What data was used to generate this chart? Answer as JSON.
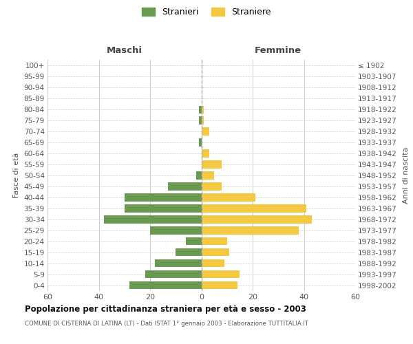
{
  "age_groups": [
    "0-4",
    "5-9",
    "10-14",
    "15-19",
    "20-24",
    "25-29",
    "30-34",
    "35-39",
    "40-44",
    "45-49",
    "50-54",
    "55-59",
    "60-64",
    "65-69",
    "70-74",
    "75-79",
    "80-84",
    "85-89",
    "90-94",
    "95-99",
    "100+"
  ],
  "birth_years": [
    "1998-2002",
    "1993-1997",
    "1988-1992",
    "1983-1987",
    "1978-1982",
    "1973-1977",
    "1968-1972",
    "1963-1967",
    "1958-1962",
    "1953-1957",
    "1948-1952",
    "1943-1947",
    "1938-1942",
    "1933-1937",
    "1928-1932",
    "1923-1927",
    "1918-1922",
    "1913-1917",
    "1908-1912",
    "1903-1907",
    "≤ 1902"
  ],
  "males": [
    28,
    22,
    18,
    10,
    6,
    20,
    38,
    30,
    30,
    13,
    2,
    0,
    0,
    1,
    0,
    1,
    1,
    0,
    0,
    0,
    0
  ],
  "females": [
    14,
    15,
    9,
    11,
    10,
    38,
    43,
    41,
    21,
    8,
    5,
    8,
    3,
    0,
    3,
    1,
    1,
    0,
    0,
    0,
    0
  ],
  "male_color": "#6a9a52",
  "female_color": "#f5c842",
  "background_color": "#ffffff",
  "grid_color": "#cccccc",
  "title": "Popolazione per cittadinanza straniera per età e sesso - 2003",
  "subtitle": "COMUNE DI CISTERNA DI LATINA (LT) - Dati ISTAT 1° gennaio 2003 - Elaborazione TUTTITALIA.IT",
  "xlabel_left": "Maschi",
  "xlabel_right": "Femmine",
  "ylabel_left": "Fasce di età",
  "ylabel_right": "Anni di nascita",
  "legend_male": "Stranieri",
  "legend_female": "Straniere",
  "xlim": 60
}
